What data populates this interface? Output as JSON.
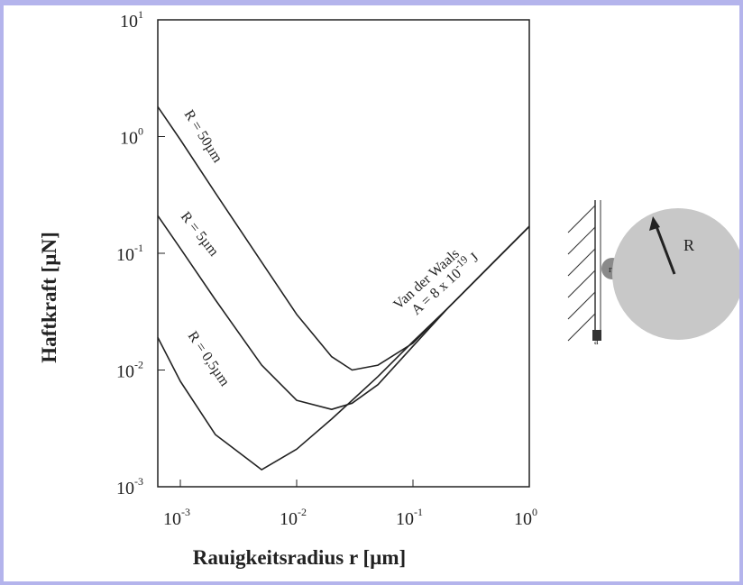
{
  "chart_data": {
    "type": "line",
    "x_label": "Rauigkeitsradius r  [µm]",
    "y_label": "Haftkraft [µN]",
    "x": [
      0.00064,
      0.001,
      0.002,
      0.005,
      0.01,
      0.02,
      0.03,
      0.05,
      0.1,
      0.2,
      0.5,
      1
    ],
    "series": [
      {
        "color": "#222222",
        "values": [
          1.8,
          0.94,
          0.33,
          0.084,
          0.03,
          0.013,
          0.01,
          0.011,
          0.017,
          0.034,
          0.085,
          0.17
        ]
      },
      {
        "color": "#222222",
        "values": [
          0.21,
          0.11,
          0.04,
          0.011,
          0.0055,
          0.0046,
          0.0052,
          0.0075,
          0.016,
          0.034,
          0.085,
          0.17
        ]
      },
      {
        "color": "#222222",
        "values": [
          0.019,
          0.008,
          0.0028,
          0.0014,
          0.0021,
          0.0038,
          0.0055,
          0.0088,
          0.0175,
          0.034,
          0.085,
          0.17
        ]
      }
    ],
    "xlim": [
      0.00064,
      1
    ],
    "ylim": [
      0.001,
      10
    ],
    "xlog": true,
    "ylog": true,
    "xticks": [
      {
        "value": 0.001,
        "label": "10",
        "exponent": "-3"
      },
      {
        "value": 0.01,
        "label": "10",
        "exponent": "-2"
      },
      {
        "value": 0.1,
        "label": "10",
        "exponent": "-1"
      },
      {
        "value": 1,
        "label": "10",
        "exponent": "0"
      }
    ],
    "yticks": [
      {
        "value": 0.001,
        "label": "10",
        "exponent": "-3"
      },
      {
        "value": 0.01,
        "label": "10",
        "exponent": "-2"
      },
      {
        "value": 0.1,
        "label": "10",
        "exponent": "-1"
      },
      {
        "value": 1,
        "label": "10",
        "exponent": "0"
      },
      {
        "value": 10,
        "label": "10",
        "exponent": "1"
      }
    ],
    "annotations": [
      {
        "text": "R = 50µm"
      },
      {
        "text": "R = 5µm"
      },
      {
        "text": "R = 0,5µm"
      },
      {
        "text": "Van der Waals"
      },
      {
        "text": "A = 8 x 10",
        "exponent": "-19",
        "suffix": " J"
      }
    ]
  },
  "diagram": {
    "labels": [
      "R",
      "r",
      "a"
    ]
  }
}
